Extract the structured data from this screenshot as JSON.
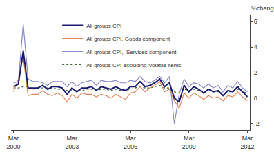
{
  "chart_data": {
    "type": "line",
    "ylabel": "%change",
    "categories": [
      "Mar\n2000",
      null,
      null,
      null,
      null,
      null,
      null,
      null,
      null,
      null,
      null,
      null,
      "Mar\n2003",
      null,
      null,
      null,
      null,
      null,
      null,
      null,
      null,
      null,
      null,
      null,
      "Mar\n2006",
      null,
      null,
      null,
      null,
      null,
      null,
      null,
      null,
      null,
      null,
      null,
      "Mar\n2009",
      null,
      null,
      null,
      null,
      null,
      null,
      null,
      null,
      null,
      null,
      null,
      "Mar\n2012"
    ],
    "series": [
      {
        "name": "All groups CPI",
        "color": "#1a1a6e",
        "line_style": "solid",
        "values": [
          0.9,
          1.1,
          3.7,
          0.8,
          0.8,
          0.8,
          1.0,
          0.7,
          0.9,
          0.9,
          0.8,
          0.3,
          0.8,
          0.5,
          0.8,
          0.8,
          0.9,
          0.6,
          0.9,
          0.8,
          0.7,
          0.9,
          0.7,
          0.6,
          0.9,
          0.9,
          1.3,
          0.9,
          1.0,
          1.2,
          1.5,
          0.9,
          1.2,
          0.0,
          -0.3,
          1.0,
          0.5,
          0.9,
          0.7,
          0.4,
          0.7,
          0.5,
          0.6,
          0.2,
          0.6,
          0.5,
          0.9,
          0.5,
          0.1
        ]
      },
      {
        "name": "All groups CPI, Goods component",
        "color": "#e8855a",
        "line_style": "solid",
        "values": [
          0.5,
          1.5,
          3.2,
          0.2,
          0.3,
          0.3,
          0.6,
          0.3,
          0.2,
          0.4,
          0.2,
          -0.3,
          0.3,
          0.0,
          0.4,
          0.3,
          0.3,
          0.1,
          0.3,
          0.2,
          0.0,
          0.3,
          0.1,
          -0.1,
          0.4,
          0.5,
          0.9,
          0.5,
          0.8,
          1.0,
          1.3,
          0.5,
          0.7,
          -0.2,
          -0.8,
          0.4,
          0.0,
          0.4,
          0.2,
          -0.1,
          0.2,
          0.0,
          0.1,
          -0.2,
          0.2,
          0.1,
          0.5,
          0.1,
          -0.2
        ]
      },
      {
        "name": "All groups CPI,  Services component",
        "color": "#8888cc",
        "line_style": "solid",
        "values": [
          1.2,
          1.3,
          5.8,
          1.5,
          1.3,
          1.3,
          1.2,
          1.0,
          1.3,
          1.3,
          1.3,
          0.9,
          1.3,
          0.9,
          1.2,
          1.3,
          1.4,
          1.0,
          1.4,
          1.3,
          1.3,
          1.4,
          1.2,
          1.2,
          1.4,
          1.3,
          1.7,
          1.3,
          1.2,
          1.4,
          1.7,
          1.2,
          1.7,
          -2.0,
          0.3,
          1.5,
          0.9,
          1.2,
          1.1,
          0.8,
          1.1,
          0.8,
          1.0,
          0.5,
          1.0,
          0.8,
          1.3,
          0.8,
          0.5
        ]
      },
      {
        "name": "All groups CPI excluding 'volatile items'",
        "color": "#336633",
        "line_style": "dotted",
        "values": [
          0.8,
          0.8,
          0.9,
          0.9,
          0.7,
          0.8,
          0.8,
          0.8,
          0.8,
          0.7,
          0.7,
          0.6,
          0.6,
          0.6,
          0.6,
          0.7,
          0.7,
          0.6,
          0.7,
          0.7,
          0.6,
          0.7,
          0.6,
          0.6,
          0.7,
          0.8,
          0.9,
          0.8,
          0.8,
          0.9,
          1.0,
          0.8,
          0.8,
          0.5,
          0.4,
          0.7,
          0.6,
          0.7,
          0.6,
          0.5,
          0.6,
          0.5,
          0.5,
          0.4,
          0.5,
          0.5,
          0.7,
          0.5,
          0.4
        ]
      }
    ],
    "ylim": [
      -2.5,
      6.5
    ],
    "yticks": [
      -2,
      0,
      2,
      4,
      6
    ],
    "grid": false,
    "legend": "upper left"
  }
}
